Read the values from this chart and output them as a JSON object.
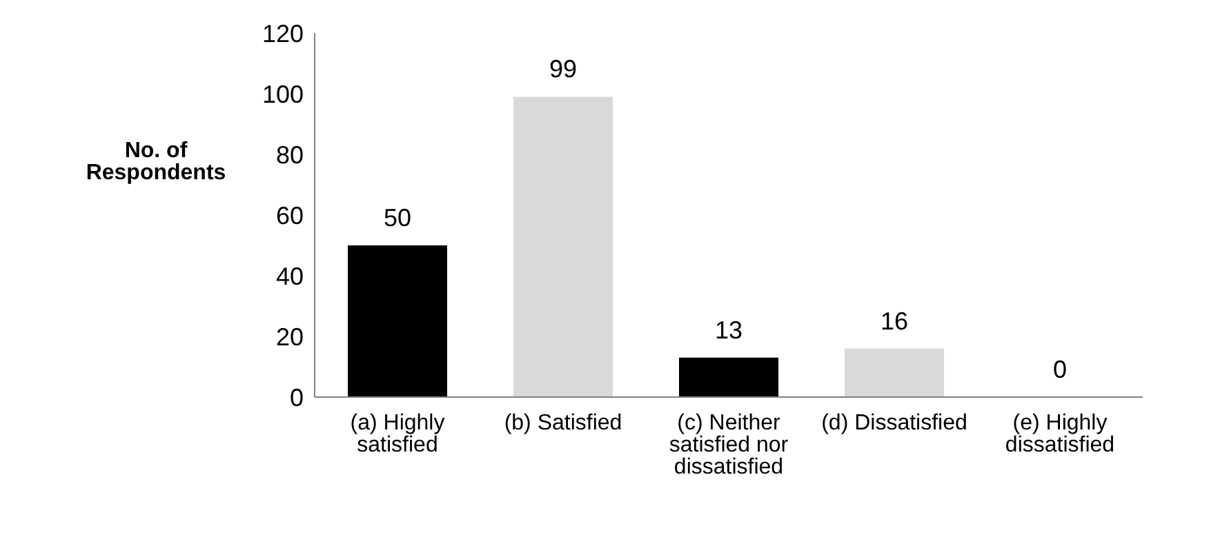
{
  "chart_data": {
    "type": "bar",
    "ylabel": "No. of Respondents",
    "categories": [
      "(a) Highly satisfied",
      "(b) Satisfied",
      "(c) Neither satisfied nor dissatisfied",
      "(d) Dissatisfied",
      "(e) Highly dissatisfied"
    ],
    "values": [
      50,
      99,
      13,
      16,
      0
    ],
    "colors": [
      "#000000",
      "#d9d9d9",
      "#000000",
      "#d9d9d9",
      "#000000"
    ],
    "ylim": [
      0,
      120
    ],
    "yticks": [
      0,
      20,
      40,
      60,
      80,
      100,
      120
    ],
    "grid": false,
    "data_labels": true
  }
}
